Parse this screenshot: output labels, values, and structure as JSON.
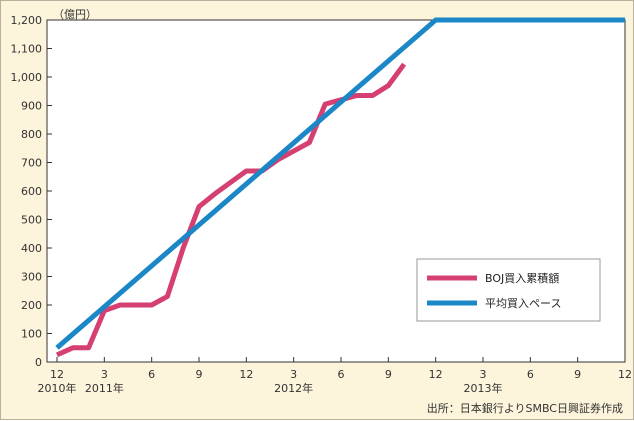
{
  "chart_data": {
    "type": "line",
    "unit_label": "（億円）",
    "ylim": [
      0,
      1200
    ],
    "yticks": [
      0,
      100,
      200,
      300,
      400,
      500,
      600,
      700,
      800,
      900,
      1000,
      1100,
      1200
    ],
    "ytick_labels": [
      "0",
      "100",
      "200",
      "300",
      "400",
      "500",
      "600",
      "700",
      "800",
      "900",
      "1,000",
      "1,100",
      "1,200"
    ],
    "xlim": [
      0,
      36
    ],
    "x_month_ticks": [
      {
        "x": 0,
        "label": "12"
      },
      {
        "x": 3,
        "label": "3"
      },
      {
        "x": 6,
        "label": "6"
      },
      {
        "x": 9,
        "label": "9"
      },
      {
        "x": 12,
        "label": "12"
      },
      {
        "x": 15,
        "label": "3"
      },
      {
        "x": 18,
        "label": "6"
      },
      {
        "x": 21,
        "label": "9"
      },
      {
        "x": 24,
        "label": "12"
      },
      {
        "x": 27,
        "label": "3"
      },
      {
        "x": 30,
        "label": "6"
      },
      {
        "x": 33,
        "label": "9"
      },
      {
        "x": 36,
        "label": "12"
      }
    ],
    "x_year_labels": [
      {
        "x": 0,
        "label": "2010年"
      },
      {
        "x": 3,
        "label": "2011年"
      },
      {
        "x": 15,
        "label": "2012年"
      },
      {
        "x": 27,
        "label": "2013年"
      }
    ],
    "x_note": "x = months since Dec 2010",
    "series": [
      {
        "name": "BOJ買入累積額",
        "color": "#d63f72",
        "x": [
          0,
          1,
          2,
          3,
          4,
          5,
          6,
          7,
          8,
          9,
          10,
          11,
          12,
          13,
          14,
          15,
          16,
          17,
          18,
          19,
          20,
          21,
          22
        ],
        "y": [
          25,
          50,
          50,
          180,
          200,
          200,
          200,
          230,
          400,
          545,
          590,
          630,
          670,
          670,
          710,
          740,
          770,
          905,
          920,
          935,
          935,
          970,
          1045
        ]
      },
      {
        "name": "平均買入ペース",
        "color": "#1b87c7",
        "x": [
          0,
          24,
          36
        ],
        "y": [
          50,
          1200,
          1200
        ]
      }
    ],
    "legend_position": "bottom-right",
    "grid": false
  },
  "source_note": "出所：日本銀行よりSMBC日興証券作成"
}
